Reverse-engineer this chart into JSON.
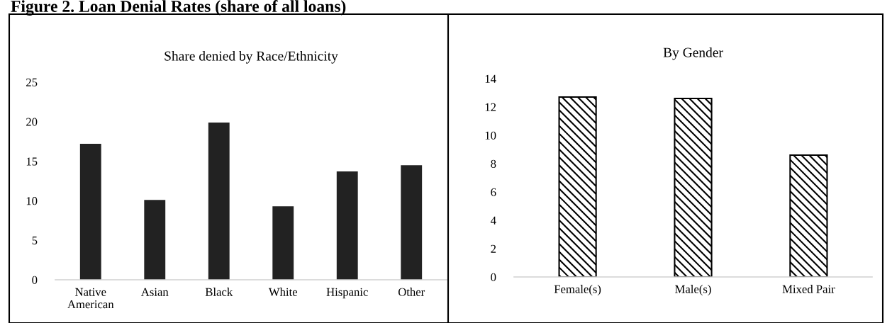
{
  "chart_data": [
    {
      "type": "bar",
      "title": "Share denied by Race/Ethnicity",
      "annotations": [
        "Figure 2. Loan Denial Rates (share of all loans)"
      ],
      "categories": [
        "Native\nAmerican",
        "Asian",
        "Black",
        "White",
        "Hispanic",
        "Other"
      ],
      "values": [
        17.2,
        10.1,
        19.9,
        9.3,
        13.7,
        14.5
      ],
      "color": "#222222",
      "ylim": [
        0,
        25
      ],
      "yticks": [
        0,
        5,
        10,
        15,
        20,
        25
      ],
      "grid": false,
      "legend": false
    },
    {
      "type": "bar",
      "title": "By Gender",
      "categories": [
        "Female(s)",
        "Male(s)",
        "Mixed Pair"
      ],
      "values": [
        12.7,
        12.6,
        8.6
      ],
      "color": "#000000",
      "ylim": [
        0,
        14
      ],
      "yticks": [
        0,
        2,
        4,
        6,
        8,
        10,
        12,
        14
      ],
      "grid": false,
      "legend": false
    }
  ]
}
